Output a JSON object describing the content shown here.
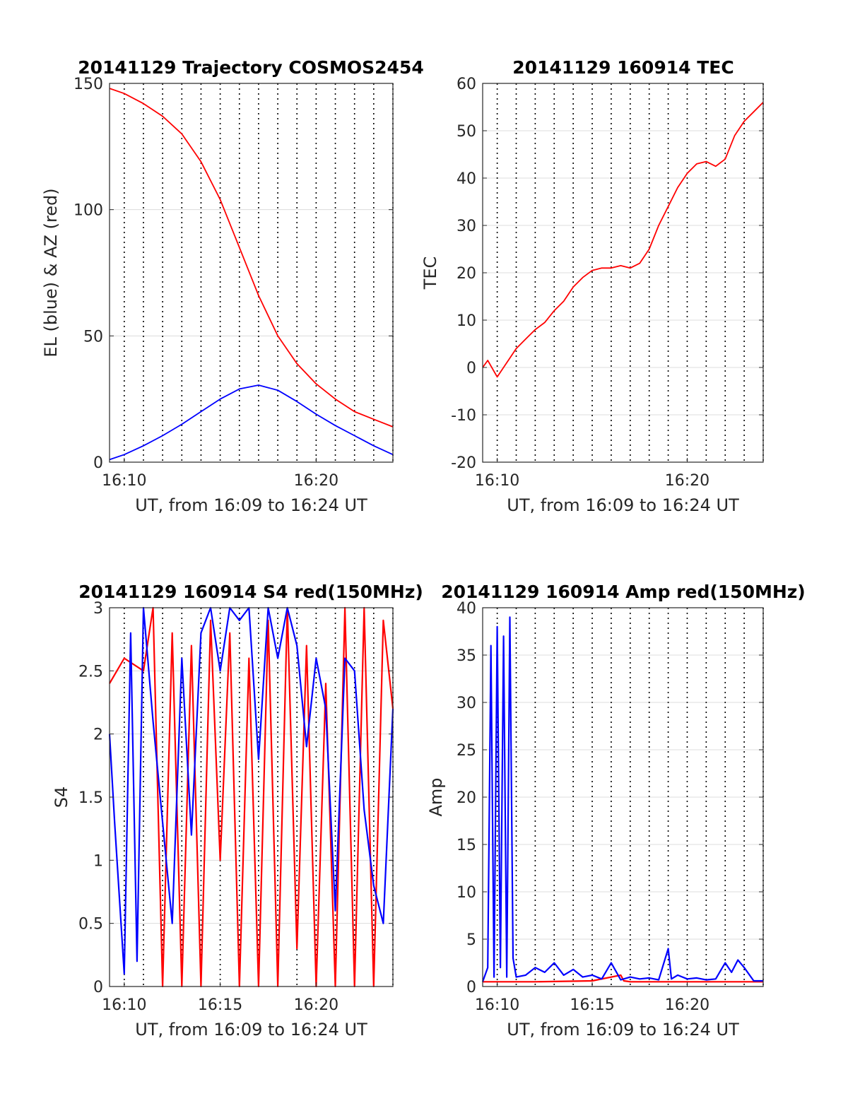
{
  "chart_data": [
    {
      "type": "line",
      "title": "20141129 Trajectory COSMOS2454",
      "xlabel": "UT, from 16:09 to 16:24 UT",
      "ylabel": "EL (blue) & AZ (red)",
      "xlim": [
        "16:09:14",
        "16:24:00"
      ],
      "ylim": [
        0,
        150
      ],
      "x_ticks": [
        "16:10",
        "16:20"
      ],
      "y_ticks": [
        0,
        50,
        100,
        150
      ],
      "grid": true,
      "series": [
        {
          "color": "#ff0000",
          "x": [
            "16:09:14",
            "16:10:00",
            "16:11:00",
            "16:12:00",
            "16:13:00",
            "16:14:00",
            "16:15:00",
            "16:16:00",
            "16:17:00",
            "16:18:00",
            "16:19:00",
            "16:20:00",
            "16:21:00",
            "16:22:00",
            "16:23:00",
            "16:24:00"
          ],
          "values": [
            148,
            146,
            142,
            137,
            130,
            119,
            104,
            85,
            66,
            50,
            39,
            31,
            25,
            20,
            17,
            14
          ]
        },
        {
          "color": "#0000ff",
          "x": [
            "16:09:14",
            "16:10:00",
            "16:11:00",
            "16:12:00",
            "16:13:00",
            "16:14:00",
            "16:15:00",
            "16:16:00",
            "16:17:00",
            "16:18:00",
            "16:19:00",
            "16:20:00",
            "16:21:00",
            "16:22:00",
            "16:23:00",
            "16:24:00"
          ],
          "values": [
            1,
            3,
            6.5,
            10.5,
            15,
            20,
            25,
            29,
            30.5,
            28.5,
            24,
            19,
            14.5,
            10.5,
            6.5,
            3
          ]
        }
      ]
    },
    {
      "type": "line",
      "title": "20141129 160914 TEC",
      "xlabel": "UT, from 16:09 to 16:24 UT",
      "ylabel": "TEC",
      "xlim": [
        "16:09:14",
        "16:24:00"
      ],
      "ylim": [
        -20,
        60
      ],
      "x_ticks": [
        "16:10",
        "16:20"
      ],
      "y_ticks": [
        -20,
        -10,
        0,
        10,
        20,
        30,
        40,
        50,
        60
      ],
      "grid": true,
      "series": [
        {
          "color": "#ff0000",
          "x": [
            "16:09:14",
            "16:09:30",
            "16:10:00",
            "16:10:30",
            "16:11:00",
            "16:11:30",
            "16:12:00",
            "16:12:30",
            "16:13:00",
            "16:13:30",
            "16:14:00",
            "16:14:30",
            "16:15:00",
            "16:15:30",
            "16:16:00",
            "16:16:30",
            "16:17:00",
            "16:17:30",
            "16:18:00",
            "16:18:30",
            "16:19:00",
            "16:19:30",
            "16:20:00",
            "16:20:30",
            "16:21:00",
            "16:21:30",
            "16:22:00",
            "16:22:30",
            "16:23:00",
            "16:23:30",
            "16:24:00"
          ],
          "values": [
            0,
            1.5,
            -2,
            1,
            4,
            6,
            8,
            9.5,
            12,
            14,
            17,
            19,
            20.5,
            21,
            21,
            21.5,
            21,
            22,
            25,
            30,
            34,
            38,
            41,
            43,
            43.5,
            42.5,
            44,
            49,
            52,
            54,
            56
          ]
        }
      ]
    },
    {
      "type": "line",
      "title": "20141129 160914 S4 red(150MHz)",
      "xlabel": "UT, from 16:09 to 16:24 UT",
      "ylabel": "S4",
      "xlim": [
        "16:09:14",
        "16:24:00"
      ],
      "ylim": [
        0,
        3
      ],
      "x_ticks": [
        "16:10",
        "16:15",
        "16:20"
      ],
      "y_ticks": [
        0,
        0.5,
        1,
        1.5,
        2,
        2.5,
        3
      ],
      "grid": true,
      "series": [
        {
          "color": "#ff0000",
          "x": [
            "16:09:14",
            "16:10:00",
            "16:11:00",
            "16:11:30",
            "16:12:00",
            "16:12:30",
            "16:13:00",
            "16:13:30",
            "16:14:00",
            "16:14:30",
            "16:15:00",
            "16:15:30",
            "16:16:00",
            "16:16:30",
            "16:17:00",
            "16:17:30",
            "16:18:00",
            "16:18:30",
            "16:19:00",
            "16:19:30",
            "16:20:00",
            "16:20:30",
            "16:21:00",
            "16:21:30",
            "16:22:00",
            "16:22:30",
            "16:23:00",
            "16:23:30",
            "16:24:00"
          ],
          "values": [
            2.4,
            2.6,
            2.5,
            3,
            0,
            2.8,
            0,
            2.7,
            0,
            2.9,
            1.0,
            2.8,
            0,
            2.6,
            0,
            2.9,
            0,
            3,
            0.3,
            2.7,
            0,
            2.4,
            0,
            3,
            0,
            3,
            0,
            2.9,
            2.2
          ]
        },
        {
          "color": "#0000ff",
          "x": [
            "16:09:14",
            "16:09:30",
            "16:10:00",
            "16:10:20",
            "16:10:40",
            "16:11:00",
            "16:11:30",
            "16:12:00",
            "16:12:30",
            "16:13:00",
            "16:13:30",
            "16:14:00",
            "16:14:30",
            "16:15:00",
            "16:15:30",
            "16:16:00",
            "16:16:30",
            "16:17:00",
            "16:17:30",
            "16:18:00",
            "16:18:30",
            "16:19:00",
            "16:19:30",
            "16:20:00",
            "16:20:30",
            "16:21:00",
            "16:21:30",
            "16:22:00",
            "16:22:30",
            "16:23:00",
            "16:23:30",
            "16:24:00"
          ],
          "values": [
            2.0,
            1.3,
            0.1,
            2.8,
            0.2,
            3,
            2.1,
            1.3,
            0.5,
            2.6,
            1.2,
            2.8,
            3,
            2.5,
            3,
            2.9,
            3,
            1.8,
            3,
            2.6,
            3,
            2.7,
            1.9,
            2.6,
            2.2,
            0.6,
            2.6,
            2.5,
            1.4,
            0.8,
            0.5,
            2.2
          ]
        }
      ]
    },
    {
      "type": "line",
      "title": "20141129 160914 Amp red(150MHz)",
      "xlabel": "UT, from 16:09 to 16:24 UT",
      "ylabel": "Amp",
      "xlim": [
        "16:09:14",
        "16:24:00"
      ],
      "ylim": [
        0,
        40
      ],
      "x_ticks": [
        "16:10",
        "16:15",
        "16:20"
      ],
      "y_ticks": [
        0,
        5,
        10,
        15,
        20,
        25,
        30,
        35,
        40
      ],
      "grid": true,
      "series": [
        {
          "color": "#ff0000",
          "x": [
            "16:09:14",
            "16:12:00",
            "16:15:00",
            "16:16:30",
            "16:16:40",
            "16:17:00",
            "16:20:00",
            "16:24:00"
          ],
          "values": [
            0.5,
            0.5,
            0.6,
            1.2,
            0.6,
            0.5,
            0.5,
            0.5
          ]
        },
        {
          "color": "#0000ff",
          "x": [
            "16:09:14",
            "16:09:30",
            "16:09:40",
            "16:09:50",
            "16:10:00",
            "16:10:10",
            "16:10:20",
            "16:10:30",
            "16:10:40",
            "16:10:50",
            "16:11:00",
            "16:11:30",
            "16:12:00",
            "16:12:30",
            "16:13:00",
            "16:13:30",
            "16:14:00",
            "16:14:30",
            "16:15:00",
            "16:15:30",
            "16:16:00",
            "16:16:30",
            "16:17:00",
            "16:17:30",
            "16:18:00",
            "16:18:30",
            "16:19:00",
            "16:19:10",
            "16:19:30",
            "16:20:00",
            "16:20:30",
            "16:21:00",
            "16:21:30",
            "16:22:00",
            "16:22:20",
            "16:22:40",
            "16:23:00",
            "16:23:30",
            "16:24:00"
          ],
          "values": [
            0.5,
            2,
            36,
            1,
            38,
            2,
            37,
            1,
            39,
            3,
            1,
            1.2,
            2,
            1.5,
            2.5,
            1.2,
            1.8,
            1,
            1.2,
            0.8,
            2.5,
            0.7,
            1,
            0.8,
            0.9,
            0.7,
            4,
            0.8,
            1.2,
            0.8,
            0.9,
            0.7,
            0.8,
            2.5,
            1.5,
            2.8,
            2,
            0.6,
            0.6
          ]
        }
      ]
    }
  ]
}
